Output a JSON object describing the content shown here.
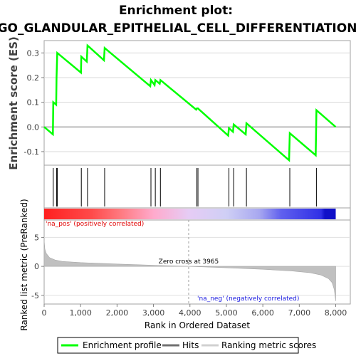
{
  "chart_data": [
    {
      "type": "line",
      "title": "Enrichment plot:",
      "subtitle": "GO_GLANDULAR_EPITHELIAL_CELL_DIFFERENTIATION",
      "ylabel": "Enrichment score (ES)",
      "xlim": [
        0,
        8400
      ],
      "ylim": [
        -0.155,
        0.35
      ],
      "yticks": [
        -0.1,
        0.0,
        0.1,
        0.2,
        0.3
      ],
      "ytick_labels": [
        "-0.1",
        "0.0",
        "0.1",
        "0.2",
        "0.3"
      ],
      "grid": true,
      "series": [
        {
          "name": "Enrichment profile",
          "color": "#00ff00",
          "points": [
            [
              0,
              0.0
            ],
            [
              240,
              -0.03
            ],
            [
              250,
              0.1
            ],
            [
              330,
              0.09
            ],
            [
              340,
              0.2
            ],
            [
              360,
              0.3
            ],
            [
              1010,
              0.22
            ],
            [
              1020,
              0.285
            ],
            [
              1170,
              0.265
            ],
            [
              1190,
              0.33
            ],
            [
              1640,
              0.27
            ],
            [
              1660,
              0.32
            ],
            [
              2910,
              0.165
            ],
            [
              2930,
              0.19
            ],
            [
              3030,
              0.17
            ],
            [
              3050,
              0.19
            ],
            [
              3170,
              0.175
            ],
            [
              3190,
              0.19
            ],
            [
              4170,
              0.07
            ],
            [
              4190,
              0.075
            ],
            [
              4220,
              0.075
            ],
            [
              5050,
              -0.035
            ],
            [
              5070,
              -0.005
            ],
            [
              5180,
              -0.02
            ],
            [
              5200,
              0.01
            ],
            [
              5530,
              -0.03
            ],
            [
              5550,
              0.015
            ],
            [
              6720,
              -0.135
            ],
            [
              6740,
              -0.025
            ],
            [
              7450,
              -0.115
            ],
            [
              7470,
              0.068
            ],
            [
              8000,
              0.0
            ]
          ]
        }
      ]
    },
    {
      "type": "scatter",
      "name": "Hits",
      "color": "#000000",
      "hit_ranks": [
        250,
        340,
        360,
        1020,
        1190,
        1660,
        2930,
        3050,
        3190,
        4190,
        4220,
        5070,
        5200,
        5550,
        6740,
        7470
      ]
    },
    {
      "type": "heatmap",
      "xlim": [
        0,
        8400
      ],
      "gradient_stops": [
        {
          "rank": 0,
          "color": "#ff2020"
        },
        {
          "rank": 1300,
          "color": "#ff4a4a"
        },
        {
          "rank": 2100,
          "color": "#ff7a80"
        },
        {
          "rank": 3000,
          "color": "#ffaacc"
        },
        {
          "rank": 3965,
          "color": "#e6ccf5"
        },
        {
          "rank": 5000,
          "color": "#cfcff5"
        },
        {
          "rank": 5900,
          "color": "#a8a8f0"
        },
        {
          "rank": 6500,
          "color": "#6060ee"
        },
        {
          "rank": 7600,
          "color": "#2f2fe6"
        },
        {
          "rank": 7700,
          "color": "#1010c8"
        },
        {
          "rank": 8000,
          "color": "#1010c8"
        }
      ],
      "pos_label": "'na_pos' (positively correlated)",
      "neg_label": "'na_neg' (negatively correlated)"
    },
    {
      "type": "area",
      "name": "Ranking metric scores",
      "color": "#c0c0c0",
      "xlabel": "Rank in Ordered Dataset",
      "ylabel": "Ranked list metric (PreRanked)",
      "xlim": [
        0,
        8400
      ],
      "ylim": [
        -6.5,
        8.0
      ],
      "xticks": [
        0,
        1000,
        2000,
        3000,
        4000,
        5000,
        6000,
        7000,
        8000
      ],
      "xtick_labels": [
        "0",
        "1,000",
        "2,000",
        "3,000",
        "4,000",
        "5,000",
        "6,000",
        "7,000",
        "8,000"
      ],
      "yticks": [
        -5,
        0,
        5
      ],
      "ytick_labels": [
        "-5",
        "0",
        "5"
      ],
      "zero_cross_label": "Zero cross at 3965",
      "zero_cross_rank": 3965,
      "points": [
        [
          0,
          4.5
        ],
        [
          20,
          3.0
        ],
        [
          60,
          2.2
        ],
        [
          150,
          1.5
        ],
        [
          300,
          1.1
        ],
        [
          500,
          0.85
        ],
        [
          1000,
          0.65
        ],
        [
          2000,
          0.4
        ],
        [
          3000,
          0.2
        ],
        [
          3965,
          0.0
        ],
        [
          5000,
          -0.25
        ],
        [
          6000,
          -0.5
        ],
        [
          6800,
          -0.8
        ],
        [
          7300,
          -1.1
        ],
        [
          7600,
          -1.5
        ],
        [
          7800,
          -2.1
        ],
        [
          7900,
          -2.8
        ],
        [
          7960,
          -4.0
        ],
        [
          8000,
          -6.0
        ]
      ]
    }
  ],
  "legend": {
    "items": [
      {
        "label": "Enrichment profile",
        "color": "#00ff00"
      },
      {
        "label": "Hits",
        "color": "#707070"
      },
      {
        "label": "Ranking metric scores",
        "color": "#d0d0d0"
      }
    ]
  }
}
